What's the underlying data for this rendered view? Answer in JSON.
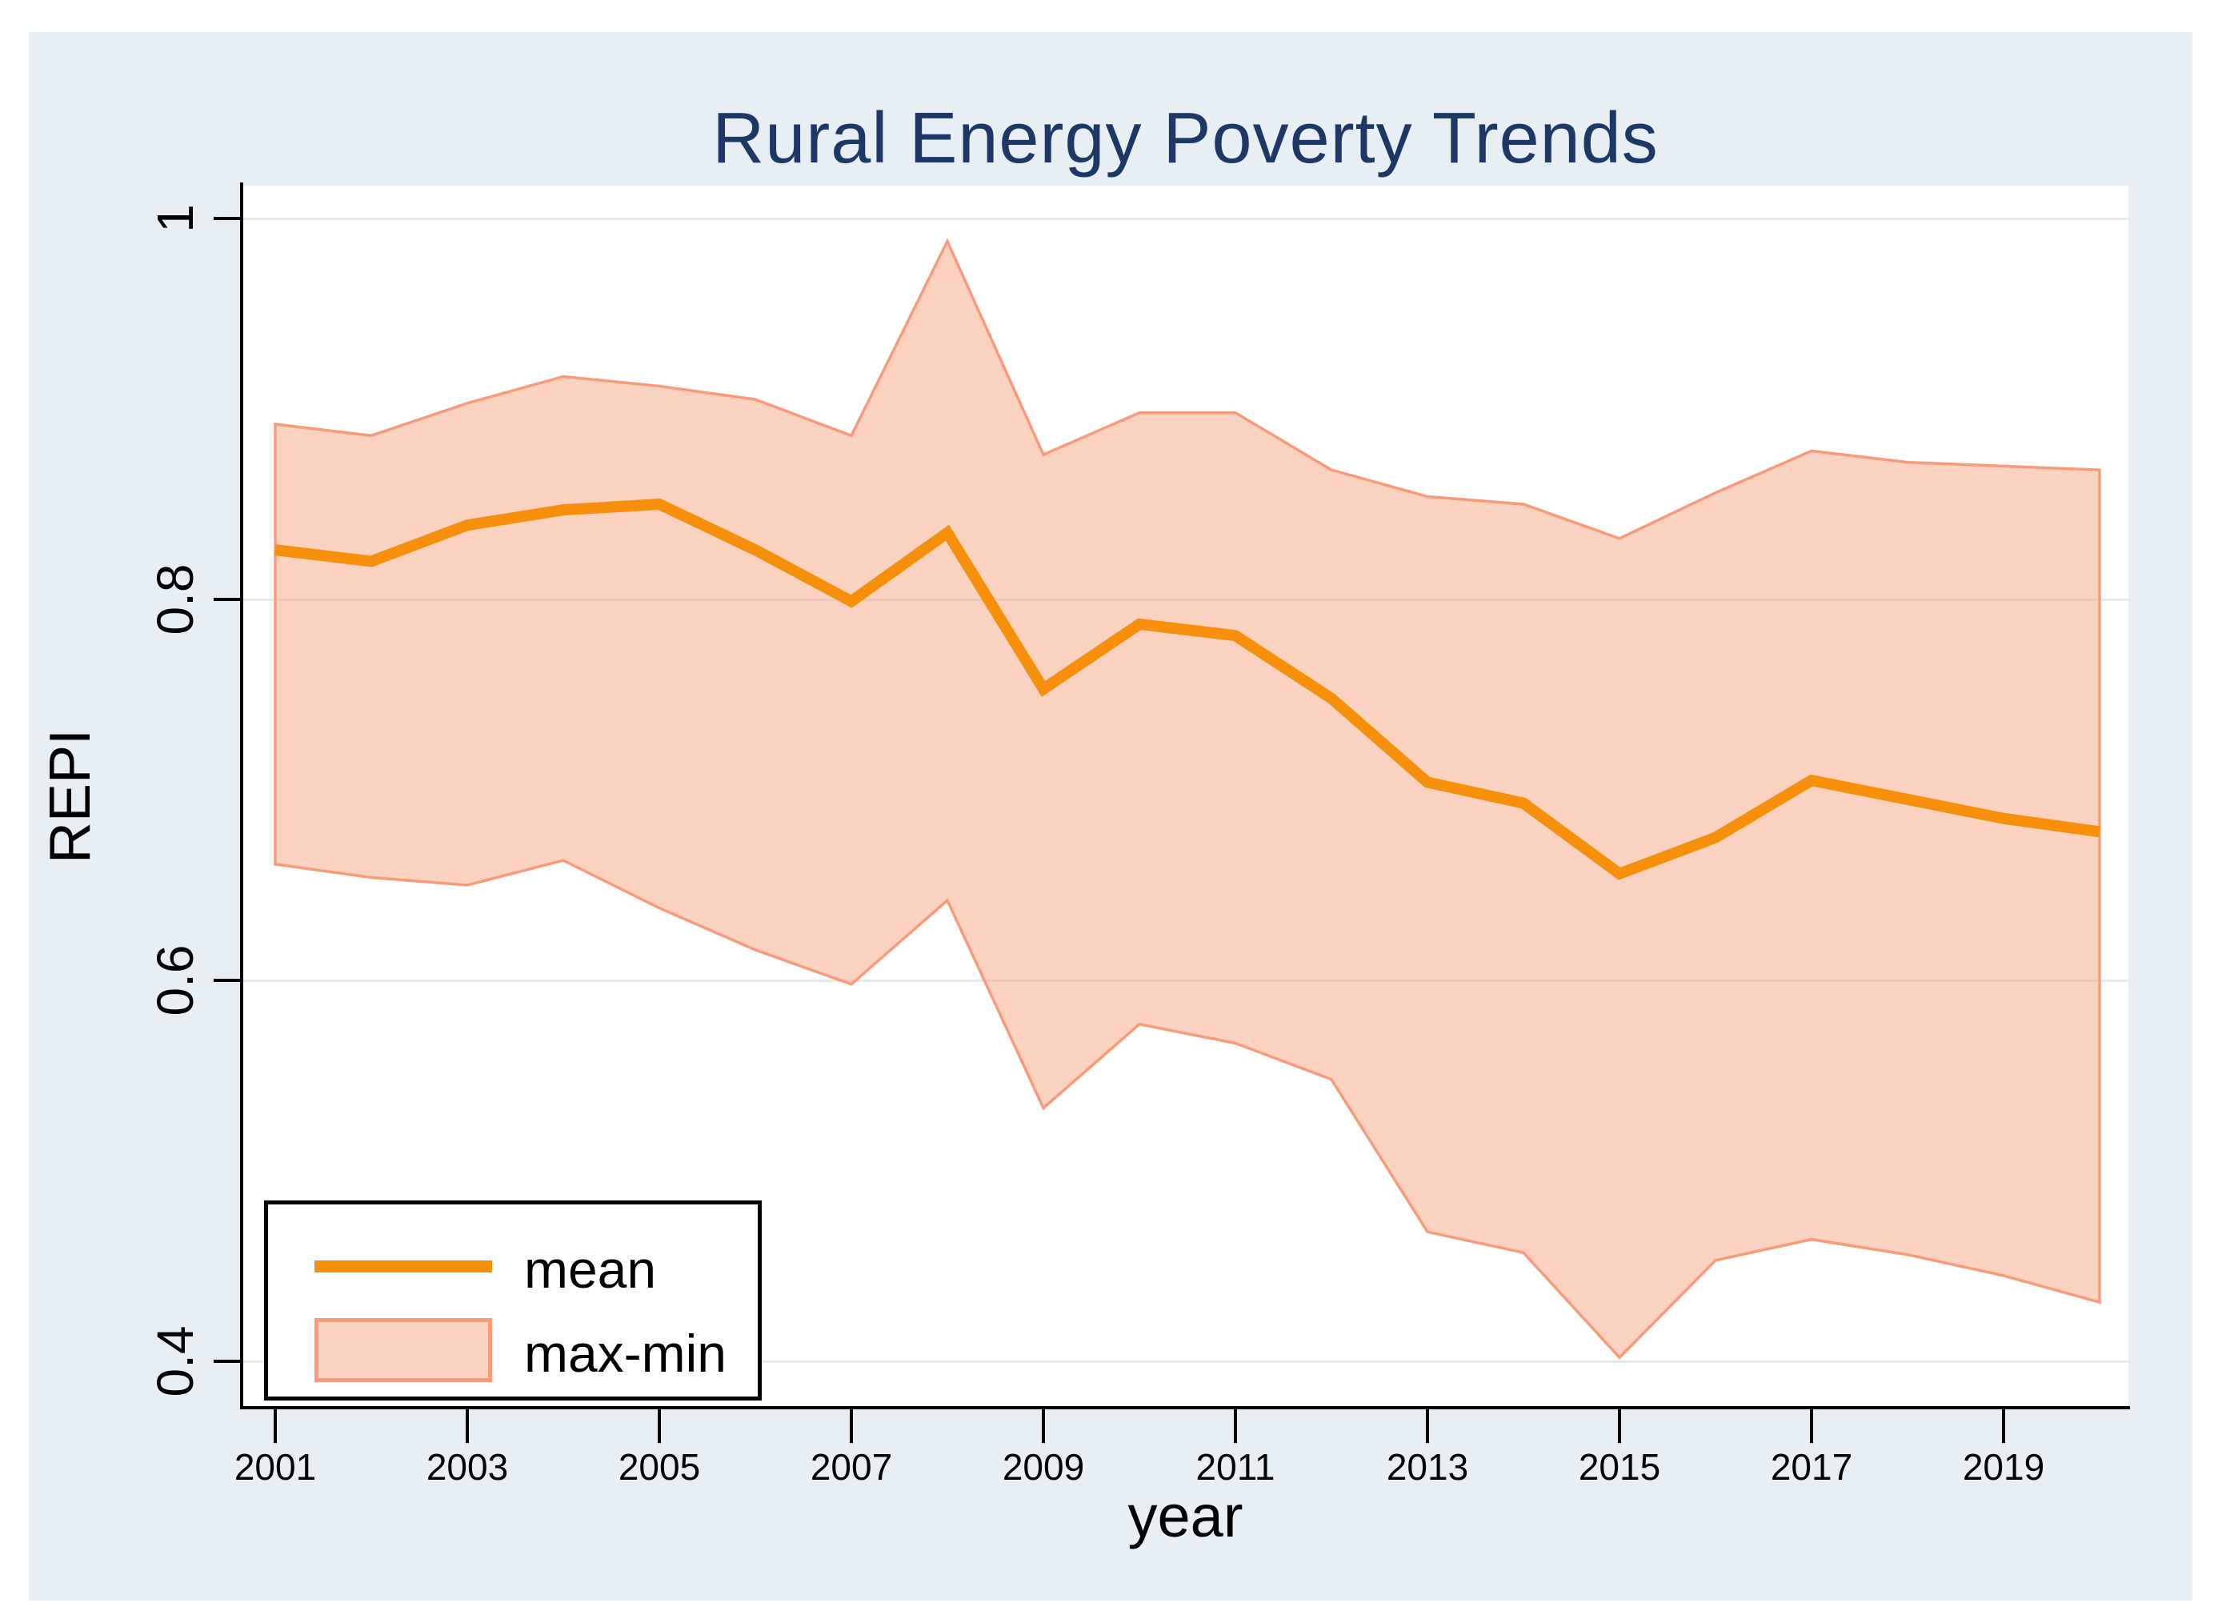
{
  "title": {
    "text": "Rural Energy Poverty Trends",
    "color": "#1d3866"
  },
  "y_axis": {
    "label": "REPI",
    "ticks": [
      {
        "label": "1",
        "value": 1.0
      },
      {
        "label": "0.8",
        "value": 0.8
      },
      {
        "label": "0.6",
        "value": 0.6
      },
      {
        "label": "0.4",
        "value": 0.4
      }
    ]
  },
  "x_axis": {
    "label": "year",
    "ticks": [
      {
        "label": "2001",
        "value": 2001
      },
      {
        "label": "2003",
        "value": 2003
      },
      {
        "label": "2005",
        "value": 2005
      },
      {
        "label": "2007",
        "value": 2007
      },
      {
        "label": "2009",
        "value": 2009
      },
      {
        "label": "2011",
        "value": 2011
      },
      {
        "label": "2013",
        "value": 2013
      },
      {
        "label": "2015",
        "value": 2015
      },
      {
        "label": "2017",
        "value": 2017
      },
      {
        "label": "2019",
        "value": 2019
      }
    ]
  },
  "legend": {
    "mean_label": "mean",
    "band_label": "max-min"
  },
  "colors": {
    "canvas_background": "#e7eef4",
    "plot_background": "#ffffff",
    "gridline": "#e6ebee",
    "mean_line": "#f68f0a",
    "band_fill": "rgba(247,152,116,0.45)",
    "band_stroke": "#f99a7a",
    "title": "#1d3866",
    "axis": "#000000"
  },
  "chart_data": {
    "type": "line",
    "title": "Rural Energy Poverty Trends",
    "xlabel": "year",
    "ylabel": "REPI",
    "x": [
      2001,
      2002,
      2003,
      2004,
      2005,
      2006,
      2007,
      2008,
      2009,
      2010,
      2011,
      2012,
      2013,
      2014,
      2015,
      2016,
      2017,
      2018,
      2019,
      2020
    ],
    "series": [
      {
        "name": "mean",
        "type": "line",
        "values": [
          0.826,
          0.82,
          0.839,
          0.847,
          0.85,
          0.826,
          0.799,
          0.835,
          0.753,
          0.787,
          0.781,
          0.748,
          0.704,
          0.693,
          0.656,
          0.675,
          0.705,
          0.695,
          0.685,
          0.678
        ]
      },
      {
        "name": "max",
        "type": "band-upper",
        "values": [
          0.892,
          0.886,
          0.903,
          0.917,
          0.912,
          0.905,
          0.886,
          0.988,
          0.876,
          0.898,
          0.898,
          0.868,
          0.854,
          0.85,
          0.832,
          0.856,
          0.878,
          0.872,
          0.87,
          0.868
        ]
      },
      {
        "name": "min",
        "type": "band-lower",
        "values": [
          0.661,
          0.654,
          0.65,
          0.663,
          0.638,
          0.616,
          0.598,
          0.642,
          0.533,
          0.577,
          0.567,
          0.548,
          0.468,
          0.457,
          0.402,
          0.453,
          0.464,
          0.456,
          0.445,
          0.431
        ]
      }
    ],
    "xlim": [
      2000.66,
      2020.3
    ],
    "ylim": [
      0.377,
      1.017
    ],
    "grid": true,
    "legend_position": "bottom-left",
    "legend_entries": [
      "mean",
      "max-min"
    ]
  }
}
